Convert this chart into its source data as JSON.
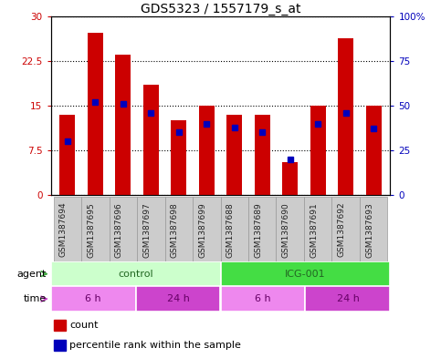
{
  "title": "GDS5323 / 1557179_s_at",
  "samples": [
    "GSM1387694",
    "GSM1387695",
    "GSM1387696",
    "GSM1387697",
    "GSM1387698",
    "GSM1387699",
    "GSM1387688",
    "GSM1387689",
    "GSM1387690",
    "GSM1387691",
    "GSM1387692",
    "GSM1387693"
  ],
  "counts": [
    13.5,
    27.2,
    23.5,
    18.5,
    12.5,
    15.0,
    13.5,
    13.5,
    5.5,
    15.0,
    26.3,
    15.0
  ],
  "percentiles": [
    30,
    52,
    51,
    46,
    35,
    40,
    38,
    35,
    20,
    40,
    46,
    37
  ],
  "ylim_left": [
    0,
    30
  ],
  "ylim_right": [
    0,
    100
  ],
  "yticks_left": [
    0,
    7.5,
    15,
    22.5,
    30
  ],
  "yticks_right": [
    0,
    25,
    50,
    75,
    100
  ],
  "ytick_labels_left": [
    "0",
    "7.5",
    "15",
    "22.5",
    "30"
  ],
  "ytick_labels_right": [
    "0",
    "25",
    "50",
    "75",
    "100%"
  ],
  "bar_color": "#cc0000",
  "percentile_color": "#0000bb",
  "agent_groups": [
    {
      "label": "control",
      "start": 0,
      "end": 6,
      "color": "#ccffcc"
    },
    {
      "label": "ICG-001",
      "start": 6,
      "end": 12,
      "color": "#44dd44"
    }
  ],
  "time_group_colors": [
    "#ee88ee",
    "#cc44cc"
  ],
  "time_groups": [
    {
      "label": "6 h",
      "start": 0,
      "end": 3,
      "color_idx": 0
    },
    {
      "label": "24 h",
      "start": 3,
      "end": 6,
      "color_idx": 1
    },
    {
      "label": "6 h",
      "start": 6,
      "end": 9,
      "color_idx": 0
    },
    {
      "label": "24 h",
      "start": 9,
      "end": 12,
      "color_idx": 1
    }
  ],
  "bar_width": 0.55,
  "grid_color": "#000000",
  "bg_color": "#ffffff",
  "spine_color": "#000000",
  "tick_color_left": "#cc0000",
  "tick_color_right": "#0000bb",
  "legend_count_color": "#cc0000",
  "legend_pct_color": "#0000bb",
  "title_fontsize": 10,
  "tick_fontsize": 7.5,
  "sample_fontsize": 6.5,
  "xaxis_bg_color": "#cccccc",
  "agent_text_color": "#226622",
  "time_text_color": "#660066"
}
